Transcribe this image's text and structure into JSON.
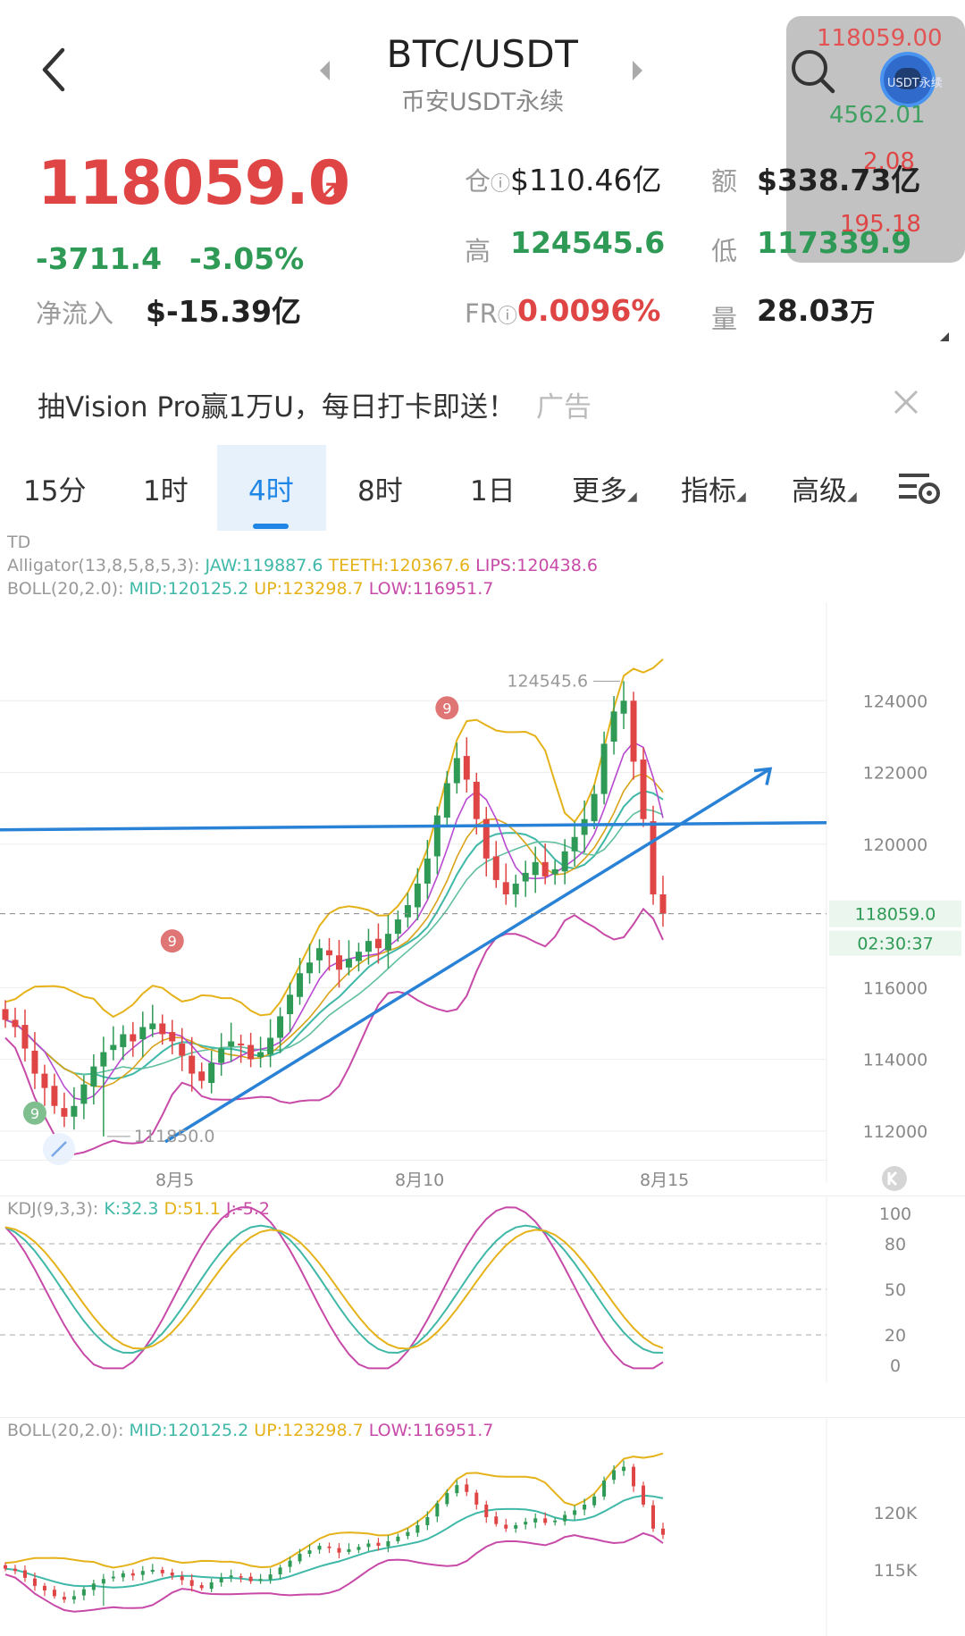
{
  "header": {
    "pair": "BTC/USDT",
    "market": "币安USDT永续"
  },
  "overlay": {
    "price": "118059.00",
    "change": "4562.01",
    "small_label": "USDT永续"
  },
  "price": {
    "last": "118059.0",
    "arrow": "↗",
    "change": "-3711.4",
    "change_pct": "-3.05%",
    "netflow_label": "净流入",
    "netflow": "$-15.39亿"
  },
  "stats": {
    "oi_label": "仓",
    "oi_value": "$110.46亿",
    "amount_label": "额",
    "amount_value": "$338.73亿",
    "amount_overlay": "2.08",
    "high_label": "高",
    "high_value": "124545.6",
    "low_label": "低",
    "low_value": "117339.9",
    "low_overlay": "195.18",
    "fr_label": "FR",
    "fr_value": "0.0096%",
    "vol_label": "量",
    "vol_value": "28.03",
    "vol_unit": "万"
  },
  "ad": {
    "text": "抽Vision Pro赢1万U，每日打卡即送！",
    "tag": "广告"
  },
  "tabs": [
    "15分",
    "1时",
    "4时",
    "8时",
    "1日",
    "更多",
    "指标",
    "高级"
  ],
  "active_tab": "4时",
  "icons": {
    "back": "chevron-left-icon",
    "prev": "triangle-left-icon",
    "next": "triangle-right-icon",
    "search": "search-icon",
    "avatar": "avatar-icon",
    "close": "close-icon",
    "settings": "chart-settings-icon",
    "collapse": "collapse-icon",
    "zoom": "zoom-arrows-icon"
  },
  "main_legend": {
    "td": "TD",
    "alligator_label": "Alligator(13,8,5,8,5,3):",
    "jaw": "JAW:119887.6",
    "teeth": "TEETH:120367.6",
    "lips": "LIPS:120438.6",
    "boll_label": "BOLL(20,2.0):",
    "mid": "MID:120125.2",
    "up": "UP:123298.7",
    "low": "LOW:116951.7"
  },
  "colors": {
    "up": "#2e9a55",
    "down": "#e04545",
    "accent": "#1f86e6",
    "boll_mid": "#3fb8a8",
    "boll_up": "#e5b21a",
    "boll_low": "#c84aa8",
    "trendline": "#2a82d6"
  },
  "chart_data": [
    {
      "type": "candlestick",
      "panel": "price",
      "yticks": [
        "124000",
        "122000",
        "120000",
        "116000",
        "114000",
        "112000"
      ],
      "ylim": [
        110800,
        126000
      ],
      "xticks": [
        "8月5",
        "8月10",
        "8月15"
      ],
      "last_price_label": "118059.0",
      "countdown": "02:30:37",
      "high_marker": "124545.6",
      "low_marker": "111850.0",
      "td_markers": [
        "9",
        "9",
        "9"
      ],
      "close_series": [
        115100,
        114900,
        114300,
        113600,
        113200,
        112700,
        112400,
        112700,
        113300,
        113800,
        114200,
        114400,
        114700,
        114500,
        114900,
        115000,
        114700,
        114500,
        114100,
        113600,
        113400,
        113900,
        114300,
        114500,
        114400,
        114000,
        114200,
        114600,
        115200,
        115800,
        116400,
        116700,
        117100,
        116900,
        116500,
        116800,
        117000,
        117300,
        117100,
        117500,
        117900,
        118300,
        118900,
        119600,
        120800,
        121700,
        122400,
        121800,
        120700,
        119600,
        119000,
        118600,
        118900,
        119200,
        119500,
        119100,
        119300,
        119800,
        120200,
        120700,
        121400,
        122800,
        123700,
        124000,
        122300,
        120700,
        118600,
        118059
      ]
    },
    {
      "type": "line",
      "panel": "KDJ",
      "legend": "KDJ(9,3,3):",
      "k": "K:32.3",
      "d": "D:51.1",
      "j": "J:-5.2",
      "yticks": [
        "100",
        "80",
        "50",
        "20",
        "0"
      ],
      "ylim": [
        0,
        100
      ]
    },
    {
      "type": "candlestick",
      "panel": "BOLL",
      "legend": "BOLL(20,2.0):",
      "mid": "MID:120125.2",
      "up": "UP:123298.7",
      "low": "LOW:116951.7",
      "yticks": [
        "120K",
        "115K"
      ]
    }
  ]
}
